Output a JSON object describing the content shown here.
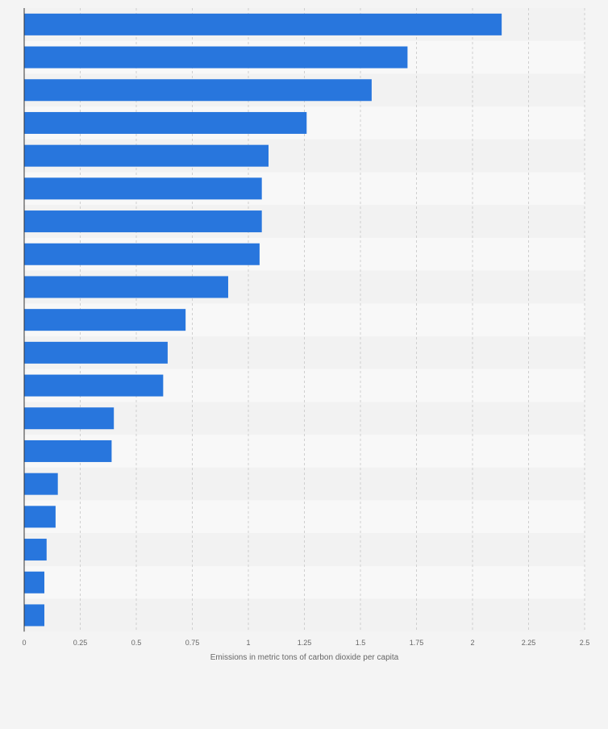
{
  "chart_data": {
    "type": "bar",
    "orientation": "horizontal",
    "title": "",
    "xlabel": "Emissions in metric tons of carbon dioxide per capita",
    "ylabel": "",
    "xlim": [
      0,
      2.5
    ],
    "x_ticks": [
      0,
      0.25,
      0.5,
      0.75,
      1,
      1.25,
      1.5,
      1.75,
      2,
      2.25,
      2.5
    ],
    "x_tick_labels": [
      "0",
      "0.25",
      "0.5",
      "0.75",
      "1",
      "1.25",
      "1.5",
      "1.75",
      "2",
      "2.25",
      "2.5"
    ],
    "values": [
      2.13,
      1.71,
      1.55,
      1.26,
      1.09,
      1.06,
      1.06,
      1.05,
      0.91,
      0.72,
      0.64,
      0.62,
      0.4,
      0.39,
      0.15,
      0.14,
      0.1,
      0.09,
      0.09
    ],
    "grid": true,
    "bar_color": "#2876dd",
    "band_colors": [
      "#f2f2f2",
      "#f8f8f8"
    ],
    "axis_color": "#333333",
    "grid_color": "#cfcfcf",
    "tick_label_color": "#666666"
  }
}
